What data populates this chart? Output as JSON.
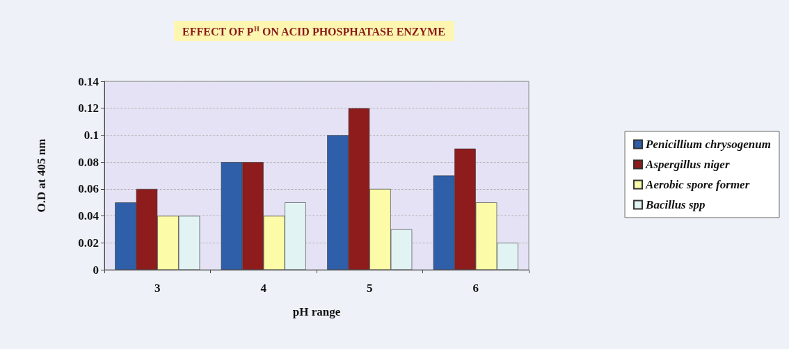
{
  "chart_data": {
    "type": "bar",
    "title": "EFFECT OF P$^{H}$ ON ACID PHOSPHATASE ENZYME",
    "xlabel": "pH range",
    "ylabel": "O.D at 405 nm",
    "categories": [
      "3",
      "4",
      "5",
      "6"
    ],
    "series": [
      {
        "name": "Penicillium chrysogenum",
        "color": "#2f5fa8",
        "values": [
          0.05,
          0.08,
          0.1,
          0.07
        ]
      },
      {
        "name": "Aspergillus niger",
        "color": "#8e1c1c",
        "values": [
          0.06,
          0.08,
          0.12,
          0.09
        ]
      },
      {
        "name": "Aerobic spore former",
        "color": "#fbfba8",
        "values": [
          0.04,
          0.04,
          0.06,
          0.05
        ]
      },
      {
        "name": "Bacillus spp",
        "color": "#e2f3f3",
        "values": [
          0.04,
          0.05,
          0.03,
          0.02
        ]
      }
    ],
    "ylim": [
      0,
      0.14
    ],
    "yticks": [
      0,
      0.02,
      0.04,
      0.06,
      0.08,
      0.1,
      0.12,
      0.14
    ],
    "grid": "y",
    "legend": "right"
  }
}
